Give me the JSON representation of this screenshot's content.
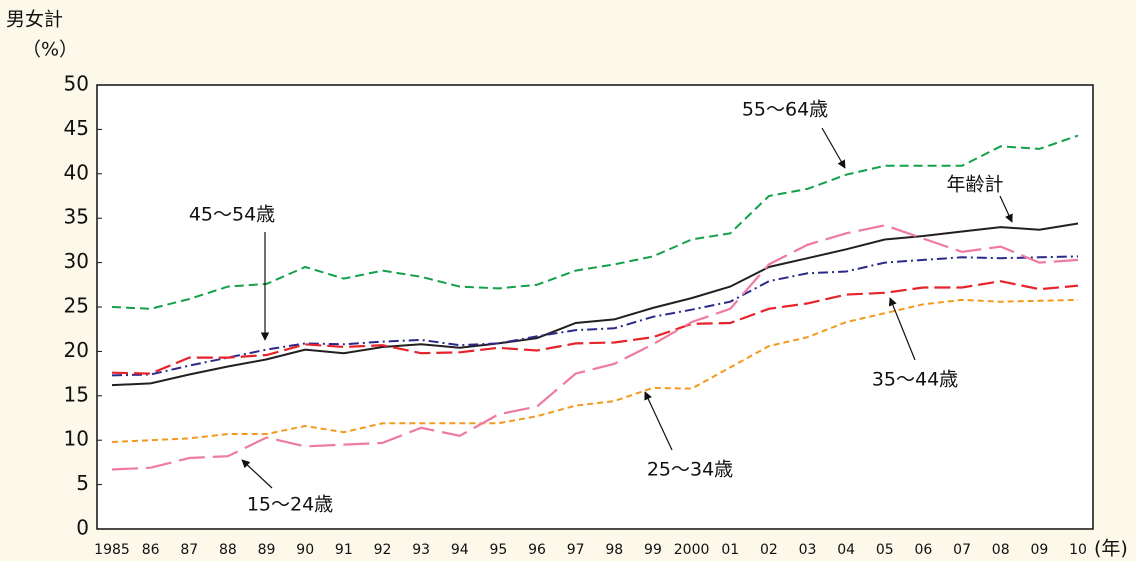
{
  "chart_data": {
    "type": "line",
    "y_label": "男女計",
    "y_unit": "（%）",
    "x_unit": "(年)",
    "categories": [
      "1985",
      "86",
      "87",
      "88",
      "89",
      "90",
      "91",
      "92",
      "93",
      "94",
      "95",
      "96",
      "97",
      "98",
      "99",
      "2000",
      "01",
      "02",
      "03",
      "04",
      "05",
      "06",
      "07",
      "08",
      "09",
      "10"
    ],
    "ylim": [
      0,
      50
    ],
    "yticks": [
      0,
      5,
      10,
      15,
      20,
      25,
      30,
      35,
      40,
      45,
      50
    ],
    "grid": false,
    "series": [
      {
        "name": "年齢計",
        "color": "#231f20",
        "values": [
          16.2,
          16.4,
          17.4,
          18.3,
          19.1,
          20.2,
          19.8,
          20.5,
          20.8,
          20.4,
          20.9,
          21.5,
          23.2,
          23.6,
          24.9,
          26.0,
          27.3,
          29.5,
          30.5,
          31.5,
          32.6,
          33.0,
          33.5,
          34.0,
          33.7,
          34.4
        ]
      },
      {
        "name": "55〜64歳",
        "color": "#13a04a",
        "values": [
          25.0,
          24.8,
          25.9,
          27.3,
          27.6,
          29.5,
          28.2,
          29.1,
          28.4,
          27.3,
          27.1,
          27.5,
          29.1,
          29.8,
          30.7,
          32.6,
          33.3,
          37.5,
          38.3,
          39.9,
          40.9,
          40.9,
          40.9,
          43.1,
          42.8,
          44.3
        ]
      },
      {
        "name": "45〜54歳",
        "color": "#2b2a8a",
        "values": [
          17.3,
          17.4,
          18.4,
          19.3,
          20.2,
          20.9,
          20.8,
          21.1,
          21.3,
          20.7,
          20.9,
          21.7,
          22.4,
          22.6,
          23.9,
          24.7,
          25.6,
          27.9,
          28.8,
          29.0,
          30.0,
          30.3,
          30.6,
          30.5,
          30.6,
          30.7
        ]
      },
      {
        "name": "35〜44歳",
        "color": "#e6232a",
        "values": [
          17.6,
          17.5,
          19.3,
          19.3,
          19.6,
          20.8,
          20.5,
          20.7,
          19.8,
          19.9,
          20.4,
          20.1,
          20.9,
          21.0,
          21.6,
          23.1,
          23.2,
          24.8,
          25.4,
          26.4,
          26.6,
          27.2,
          27.2,
          27.9,
          27.0,
          27.4
        ]
      },
      {
        "name": "25〜34歳",
        "color": "#f39a1e",
        "values": [
          9.8,
          10.0,
          10.2,
          10.7,
          10.7,
          11.6,
          10.9,
          11.9,
          11.9,
          11.9,
          11.9,
          12.7,
          13.9,
          14.4,
          15.9,
          15.8,
          18.2,
          20.6,
          21.6,
          23.3,
          24.3,
          25.3,
          25.8,
          25.6,
          25.7,
          25.8
        ]
      },
      {
        "name": "15〜24歳",
        "color": "#ee7ba0",
        "values": [
          6.7,
          6.9,
          8.0,
          8.2,
          10.3,
          9.3,
          9.5,
          9.7,
          11.4,
          10.5,
          12.9,
          13.8,
          17.5,
          18.6,
          20.8,
          23.3,
          24.8,
          29.8,
          32.0,
          33.3,
          34.2,
          32.7,
          31.2,
          31.8,
          30.0,
          30.3
        ]
      }
    ]
  }
}
